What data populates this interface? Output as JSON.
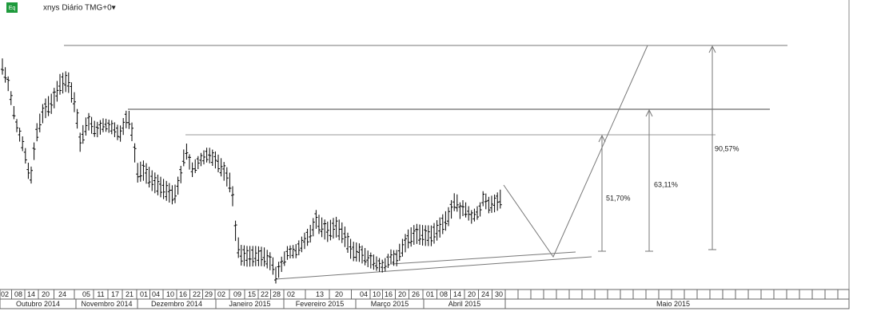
{
  "header": {
    "icon": "Eq",
    "title": "xnys Diário TMG+0▾"
  },
  "axis": {
    "days": [
      "02",
      "08",
      "14",
      "20",
      "24",
      "05",
      "11",
      "17",
      "21",
      "01",
      "04",
      "10",
      "16",
      "22",
      "29",
      "02",
      "09",
      "15",
      "22",
      "28",
      "02",
      "13",
      "20",
      "04",
      "10",
      "16",
      "20",
      "26",
      "01",
      "08",
      "14",
      "20",
      "24",
      "30"
    ],
    "months": [
      "Outubro 2014",
      "Novembro 2014",
      "Dezembro 2014",
      "Janeiro 2015",
      "Fevereiro 2015",
      "Março 2015",
      "Abril 2015",
      "Maio 2015"
    ]
  },
  "annotations": [
    "51,70%",
    "63,11%",
    "90,57%"
  ]
}
